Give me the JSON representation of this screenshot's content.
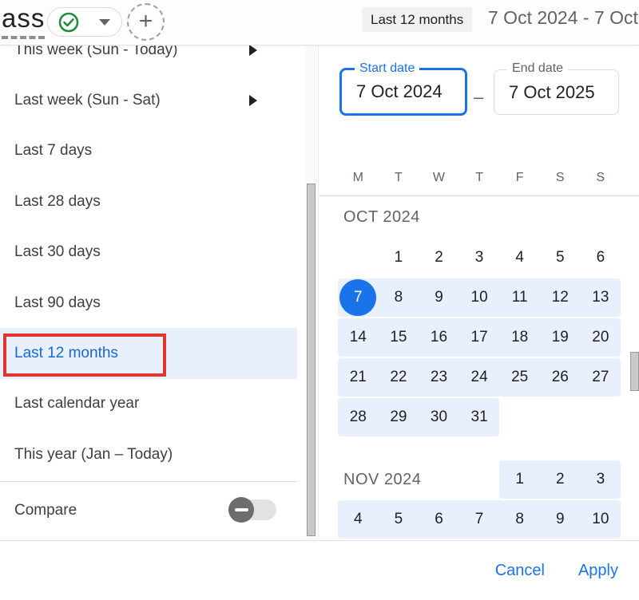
{
  "topbar": {
    "logo_text": "ass",
    "range_chip": "Last 12 months",
    "range_text": "7 Oct 2024 - 7 Oct"
  },
  "presets": [
    {
      "label": "This week (Sun - Today)",
      "submenu": true,
      "selected": false
    },
    {
      "label": "Last week (Sun - Sat)",
      "submenu": true,
      "selected": false
    },
    {
      "label": "Last 7 days",
      "submenu": false,
      "selected": false
    },
    {
      "label": "Last 28 days",
      "submenu": false,
      "selected": false
    },
    {
      "label": "Last 30 days",
      "submenu": false,
      "selected": false
    },
    {
      "label": "Last 90 days",
      "submenu": false,
      "selected": false
    },
    {
      "label": "Last 12 months",
      "submenu": false,
      "selected": true,
      "annotated": true
    },
    {
      "label": "Last calendar year",
      "submenu": false,
      "selected": false
    },
    {
      "label": "This year (Jan – Today)",
      "submenu": false,
      "selected": false
    }
  ],
  "compare": {
    "label": "Compare",
    "enabled": false
  },
  "date_fields": {
    "start": {
      "label": "Start date",
      "value": "7 Oct 2024",
      "focused": true
    },
    "separator": "–",
    "end": {
      "label": "End date",
      "value": "7 Oct 2025",
      "focused": false
    }
  },
  "calendar": {
    "weekdays": [
      "M",
      "T",
      "W",
      "T",
      "F",
      "S",
      "S"
    ],
    "selected": {
      "month": "OCT 2024",
      "day": 7
    },
    "months": [
      {
        "name": "OCT 2024",
        "label_inline": false,
        "weeks": [
          {
            "days": [
              null,
              1,
              2,
              3,
              4,
              5,
              6
            ],
            "range": null
          },
          {
            "days": [
              7,
              8,
              9,
              10,
              11,
              12,
              13
            ],
            "range": [
              0,
              6
            ],
            "selected_col": 0
          },
          {
            "days": [
              14,
              15,
              16,
              17,
              18,
              19,
              20
            ],
            "range": [
              0,
              6
            ]
          },
          {
            "days": [
              21,
              22,
              23,
              24,
              25,
              26,
              27
            ],
            "range": [
              0,
              6
            ]
          },
          {
            "days": [
              28,
              29,
              30,
              31,
              null,
              null,
              null
            ],
            "range": [
              0,
              3
            ]
          }
        ]
      },
      {
        "name": "NOV 2024",
        "label_inline": true,
        "weeks": [
          {
            "days": [
              null,
              null,
              null,
              null,
              1,
              2,
              3
            ],
            "range": [
              4,
              6
            ]
          },
          {
            "days": [
              4,
              5,
              6,
              7,
              8,
              9,
              10
            ],
            "range": [
              0,
              6
            ]
          }
        ]
      }
    ]
  },
  "footer": {
    "cancel_label": "Cancel",
    "apply_label": "Apply"
  },
  "colors": {
    "accent_blue": "#1a73e8",
    "selected_text_blue": "#1967d2",
    "range_highlight": "#e8f0fe",
    "annotation_red": "#e3352b",
    "check_green": "#1e8e3e",
    "text_gray": "#5f6368",
    "text_dark": "#202124"
  }
}
